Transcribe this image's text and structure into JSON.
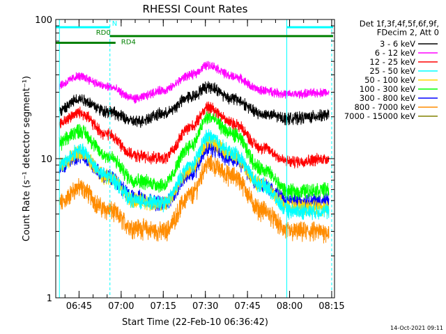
{
  "chart_data": {
    "type": "line",
    "title": "RHESSI Count Rates",
    "xlabel": "Start Time (22-Feb-10 06:36:42)",
    "ylabel": "Count Rate (s⁻¹ detector segment⁻¹)",
    "yscale": "log",
    "ylim": [
      1,
      100
    ],
    "xlim": [
      "06:36:42",
      "08:16:00"
    ],
    "x_ticks": [
      "06:45",
      "07:00",
      "07:15",
      "07:30",
      "07:45",
      "08:00",
      "08:15"
    ],
    "y_ticks": [
      "1",
      "10",
      "100"
    ],
    "grid": false,
    "legend_header": [
      "Det 1f,3f,4f,5f,6f,9f,",
      "FDecim 2, Att 0"
    ],
    "legend_position": "right",
    "series": [
      {
        "name": "3 - 6 keV",
        "color": "#000000",
        "values": [
          [
            "06:38",
            22
          ],
          [
            "06:45",
            27
          ],
          [
            "06:55",
            22
          ],
          [
            "07:05",
            18.5
          ],
          [
            "07:15",
            21
          ],
          [
            "07:25",
            28
          ],
          [
            "07:31",
            33
          ],
          [
            "07:40",
            27
          ],
          [
            "07:50",
            21
          ],
          [
            "08:00",
            19.5
          ],
          [
            "08:14",
            20.5
          ]
        ]
      },
      {
        "name": "6 - 12 keV",
        "color": "#ff00ff",
        "values": [
          [
            "06:38",
            34
          ],
          [
            "06:45",
            39
          ],
          [
            "06:55",
            33
          ],
          [
            "07:05",
            27
          ],
          [
            "07:15",
            31
          ],
          [
            "07:25",
            40
          ],
          [
            "07:31",
            47
          ],
          [
            "07:40",
            39
          ],
          [
            "07:50",
            31
          ],
          [
            "08:00",
            29
          ],
          [
            "08:14",
            30
          ]
        ]
      },
      {
        "name": "12 - 25 keV",
        "color": "#ff0000",
        "values": [
          [
            "06:38",
            18
          ],
          [
            "06:45",
            21.5
          ],
          [
            "06:55",
            15
          ],
          [
            "07:05",
            10.5
          ],
          [
            "07:15",
            10
          ],
          [
            "07:25",
            17
          ],
          [
            "07:31",
            23.5
          ],
          [
            "07:40",
            18
          ],
          [
            "07:50",
            12
          ],
          [
            "08:00",
            9.5
          ],
          [
            "08:14",
            10
          ]
        ]
      },
      {
        "name": "25 - 50 keV",
        "color": "#00ffff",
        "values": [
          [
            "06:38",
            9
          ],
          [
            "06:45",
            11.5
          ],
          [
            "06:55",
            7.5
          ],
          [
            "07:05",
            5
          ],
          [
            "07:15",
            4.8
          ],
          [
            "07:25",
            9
          ],
          [
            "07:31",
            14.5
          ],
          [
            "07:40",
            11
          ],
          [
            "07:50",
            6.5
          ],
          [
            "08:00",
            4.2
          ],
          [
            "08:14",
            4.2
          ]
        ]
      },
      {
        "name": "50 - 100 keV",
        "color": "#ffd700",
        "values": [
          [
            "06:38",
            9
          ],
          [
            "06:45",
            11
          ],
          [
            "06:55",
            7.5
          ],
          [
            "07:05",
            5
          ],
          [
            "07:15",
            4.7
          ],
          [
            "07:25",
            8.5
          ],
          [
            "07:31",
            13.5
          ],
          [
            "07:40",
            10.5
          ],
          [
            "07:50",
            6.5
          ],
          [
            "08:00",
            4.5
          ],
          [
            "08:14",
            4.5
          ]
        ]
      },
      {
        "name": "100 - 300 keV",
        "color": "#00ff00",
        "values": [
          [
            "06:38",
            13
          ],
          [
            "06:45",
            16
          ],
          [
            "06:55",
            10.5
          ],
          [
            "07:05",
            7
          ],
          [
            "07:15",
            6.5
          ],
          [
            "07:25",
            12.5
          ],
          [
            "07:31",
            20
          ],
          [
            "07:40",
            15
          ],
          [
            "07:50",
            8.5
          ],
          [
            "08:00",
            5.8
          ],
          [
            "08:14",
            6
          ]
        ]
      },
      {
        "name": "300 - 800 keV",
        "color": "#0000ff",
        "values": [
          [
            "06:38",
            8.5
          ],
          [
            "06:45",
            10.5
          ],
          [
            "06:55",
            7.5
          ],
          [
            "07:05",
            5.3
          ],
          [
            "07:15",
            4.8
          ],
          [
            "07:25",
            7.8
          ],
          [
            "07:31",
            12
          ],
          [
            "07:40",
            10
          ],
          [
            "07:50",
            6.5
          ],
          [
            "08:00",
            5
          ],
          [
            "08:14",
            5
          ]
        ]
      },
      {
        "name": "800 - 7000 keV",
        "color": "#ff8c00",
        "values": [
          [
            "06:38",
            4.8
          ],
          [
            "06:45",
            6.2
          ],
          [
            "06:55",
            4.3
          ],
          [
            "07:05",
            3.2
          ],
          [
            "07:15",
            3
          ],
          [
            "07:25",
            5.5
          ],
          [
            "07:31",
            9.2
          ],
          [
            "07:40",
            7.5
          ],
          [
            "07:50",
            4.3
          ],
          [
            "08:00",
            3
          ],
          [
            "08:14",
            3
          ]
        ]
      },
      {
        "name": "7000 - 15000 keV",
        "color": "#808000",
        "values": []
      }
    ],
    "attenuator_bars": [
      {
        "label": "N",
        "color": "#00ffff",
        "segments": [
          [
            "06:36:42",
            "06:56:00"
          ],
          [
            "07:59:00",
            "08:15:30"
          ]
        ],
        "y": 88
      },
      {
        "label": "RD0",
        "color": "#008000",
        "segments": [
          [
            "06:56:00",
            "08:15:30"
          ]
        ],
        "y": 76
      },
      {
        "label": "RD4",
        "color": "#008000",
        "segments": [
          [
            "06:36:42",
            "06:58:00"
          ]
        ],
        "y": 68
      }
    ],
    "vertical_markers": [
      {
        "time": "06:38:00",
        "color": "#00ffff",
        "style": "solid"
      },
      {
        "time": "06:56:00",
        "color": "#00ffff",
        "style": "dashed"
      },
      {
        "time": "07:59:00",
        "color": "#00ffff",
        "style": "solid"
      },
      {
        "time": "08:15:00",
        "color": "#00ffff",
        "style": "dashed"
      }
    ]
  },
  "footer_timestamp": "14-Oct-2021 09:11"
}
